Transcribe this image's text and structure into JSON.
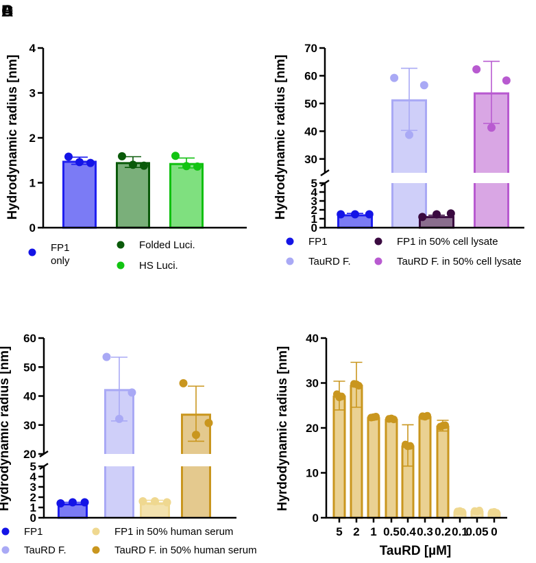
{
  "panel_labels": [
    "A",
    "B",
    "C",
    "D"
  ],
  "chart_data": [
    {
      "panel": "A",
      "type": "bar",
      "ylabel": "Hydrodynamic radius [nm]",
      "xlabel": "",
      "ylim": [
        0,
        4
      ],
      "yticks": [
        0,
        1,
        2,
        3,
        4
      ],
      "categories": [
        "FP1 only",
        "Folded Luci.",
        "HS Luci."
      ],
      "values": [
        1.49,
        1.46,
        1.44
      ],
      "error": [
        0.08,
        0.12,
        0.11
      ],
      "points": [
        [
          1.58,
          1.46,
          1.44
        ],
        [
          1.59,
          1.4,
          1.38
        ],
        [
          1.6,
          1.37,
          1.36
        ]
      ],
      "bar_colors": [
        "#7b7bf5",
        "#7aaf7a",
        "#7fe07f"
      ],
      "edge_colors": [
        "#1f1ff0",
        "#0a5a0a",
        "#10c010"
      ],
      "point_colors": [
        "#1414e6",
        "#0a5a0a",
        "#12c412"
      ],
      "legend": [
        {
          "label": "FP1\nonly",
          "color": "#1414e6"
        },
        {
          "label": "Folded Luci.",
          "color": "#0a5a0a"
        },
        {
          "label": "HS Luci.",
          "color": "#12c412"
        }
      ]
    },
    {
      "panel": "B",
      "type": "bar",
      "ylabel": "Hydrodynamic radius [nm]",
      "xlabel": "",
      "broken_axis": {
        "lower": [
          0,
          5
        ],
        "upper": [
          25,
          70
        ]
      },
      "yticks_lower": [
        0,
        1,
        2,
        3,
        4,
        5
      ],
      "yticks_upper": [
        30,
        40,
        50,
        60,
        70
      ],
      "categories": [
        "FP1",
        "TauRD F.",
        "FP1 in 50% cell lysate",
        "TauRD F. in 50% cell lysate"
      ],
      "values": [
        1.5,
        51.5,
        1.3,
        54.0
      ],
      "error": [
        0.1,
        11.2,
        0.1,
        11.2
      ],
      "points": [
        [
          1.5,
          1.5,
          1.5
        ],
        [
          59.2,
          56.6,
          38.7
        ],
        [
          1.2,
          1.6,
          1.5
        ],
        [
          62.3,
          58.3,
          41.3
        ]
      ],
      "bar_colors": [
        "#7b7bf5",
        "#cfcff9",
        "#8a6d8e",
        "#d9a6e4"
      ],
      "edge_colors": [
        "#1f1ff0",
        "#a9a9f5",
        "#3a0a40",
        "#b85ad0"
      ],
      "point_colors": [
        "#1414e6",
        "#a9a9f5",
        "#3a0a40",
        "#b85ad0"
      ],
      "legend": [
        {
          "label": "FP1",
          "color": "#1414e6"
        },
        {
          "label": "FP1 in 50% cell lysate",
          "color": "#3a0a40"
        },
        {
          "label": "TauRD F.",
          "color": "#a9a9f5"
        },
        {
          "label": "TauRD F. in 50% cell lysate",
          "color": "#b85ad0"
        }
      ]
    },
    {
      "panel": "C",
      "type": "bar",
      "ylabel": "Hydrodynamic radius [nm]",
      "xlabel": "",
      "broken_axis": {
        "lower": [
          0,
          5
        ],
        "upper": [
          20,
          60
        ]
      },
      "yticks_lower": [
        0,
        1,
        2,
        3,
        4,
        5
      ],
      "yticks_upper": [
        20,
        30,
        40,
        50,
        60
      ],
      "categories": [
        "FP1",
        "TauRD F.",
        "FP1 in 50% human serum",
        "TauRD F. in 50% human serum"
      ],
      "values": [
        1.4,
        42.4,
        1.5,
        33.9
      ],
      "error": [
        0.1,
        11.0,
        0.2,
        9.5
      ],
      "points": [
        [
          1.4,
          1.5,
          1.5
        ],
        [
          53.5,
          41.2,
          32.1
        ],
        [
          1.6,
          1.5,
          1.6
        ],
        [
          44.4,
          30.7,
          26.6
        ]
      ],
      "bar_colors": [
        "#7b7bf5",
        "#cfcff9",
        "#f3e2ad",
        "#e4c98e"
      ],
      "edge_colors": [
        "#1f1ff0",
        "#a9a9f5",
        "#efd890",
        "#c9961e"
      ],
      "point_colors": [
        "#1414e6",
        "#a9a9f5",
        "#efd890",
        "#c9961e"
      ],
      "legend": [
        {
          "label": "FP1",
          "color": "#1414e6"
        },
        {
          "label": "FP1 in 50% human serum",
          "color": "#efd890"
        },
        {
          "label": "TauRD F.",
          "color": "#a9a9f5"
        },
        {
          "label": "TauRD F. in 50% human serum",
          "color": "#c9961e"
        }
      ]
    },
    {
      "panel": "D",
      "type": "bar",
      "ylabel": "Hyrdodynamic radius [nm]",
      "xlabel": "TauRD [µM]",
      "ylim": [
        0,
        40
      ],
      "yticks": [
        0,
        10,
        20,
        30,
        40
      ],
      "categories": [
        "5",
        "2",
        "1",
        "0.5",
        "0.4",
        "0.3",
        "0.2",
        "0.1",
        "0.05",
        "0"
      ],
      "values": [
        27.2,
        29.6,
        22.4,
        22.0,
        16.1,
        22.6,
        20.5,
        1.4,
        1.5,
        1.2
      ],
      "error": [
        3.2,
        5.0,
        0.2,
        0.2,
        4.6,
        0.2,
        1.2,
        0.2,
        0.2,
        0.2
      ],
      "points": [
        [
          27.5,
          27.0,
          26.8
        ],
        [
          29.8,
          29.4,
          29.7
        ],
        [
          22.3,
          22.5,
          22.4
        ],
        [
          22.0,
          21.9,
          22.1
        ],
        [
          16.3,
          16.0,
          15.9
        ],
        [
          22.6,
          22.7,
          22.5
        ],
        [
          20.3,
          20.6,
          20.5
        ],
        [
          1.4,
          1.3,
          1.5
        ],
        [
          1.5,
          1.6,
          1.4
        ],
        [
          1.2,
          1.1,
          1.3
        ]
      ],
      "bar_colors": [
        "#ead192",
        "#ead192",
        "#ead192",
        "#ead192",
        "#ead192",
        "#ead192",
        "#ead192",
        "#f3e2ad",
        "#f3e2ad",
        "#f3e2ad"
      ],
      "edge_colors": [
        "#c9961e",
        "#c9961e",
        "#c9961e",
        "#c9961e",
        "#c9961e",
        "#c9961e",
        "#c9961e",
        "#efd890",
        "#efd890",
        "#efd890"
      ],
      "point_colors": [
        "#c9961e",
        "#c9961e",
        "#c9961e",
        "#c9961e",
        "#c9961e",
        "#c9961e",
        "#c9961e",
        "#efd890",
        "#efd890",
        "#efd890"
      ],
      "legend": []
    }
  ]
}
